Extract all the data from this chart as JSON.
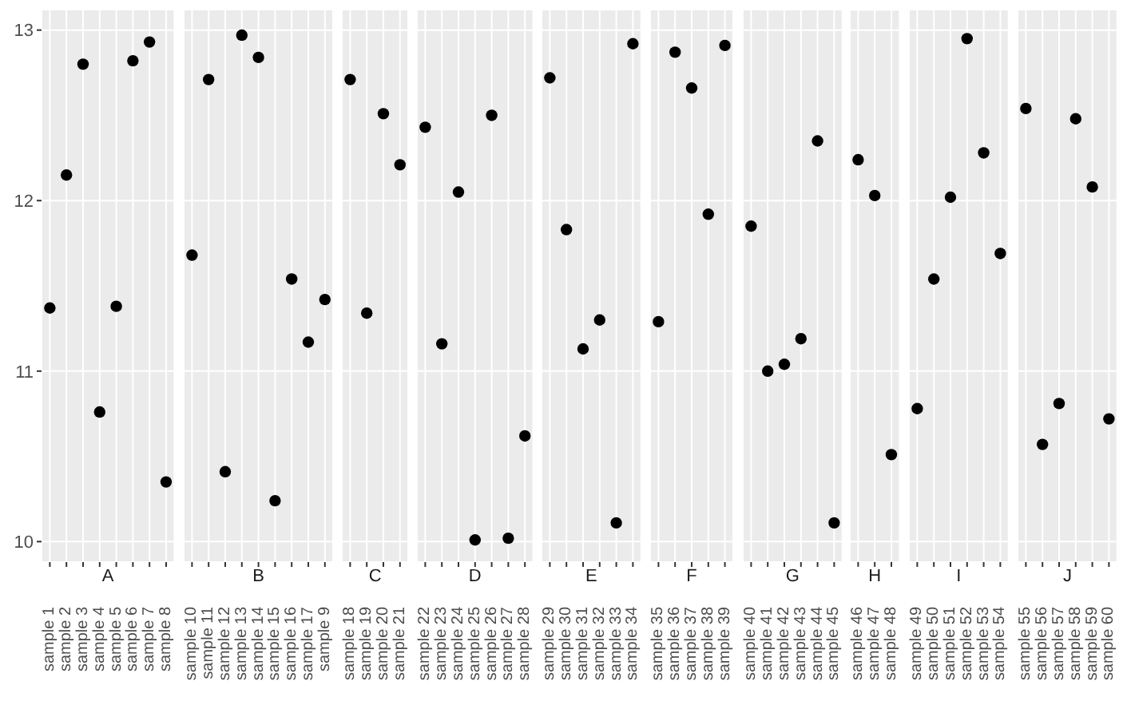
{
  "chart_data": [
    {
      "type": "scatter",
      "xlabel": "A",
      "categories": [
        "sample 1",
        "sample 2",
        "sample 3",
        "sample 4",
        "sample 5",
        "sample 6",
        "sample 7",
        "sample 8"
      ],
      "values": [
        11.37,
        12.15,
        12.8,
        10.76,
        11.38,
        12.82,
        12.93,
        10.35
      ],
      "color": "#000000",
      "marker": "circle",
      "ylim": [
        9.88,
        13.12
      ],
      "yticks": [
        10,
        11,
        12,
        13
      ],
      "grid": true
    },
    {
      "type": "scatter",
      "xlabel": "B",
      "categories": [
        "sample 10",
        "sample 11",
        "sample 12",
        "sample 13",
        "sample 14",
        "sample 15",
        "sample 16",
        "sample 17",
        "sample 9"
      ],
      "values": [
        11.68,
        12.71,
        10.41,
        12.97,
        12.84,
        10.24,
        11.54,
        11.17,
        11.42
      ],
      "color": "#000000",
      "marker": "circle",
      "ylim": [
        9.88,
        13.12
      ],
      "yticks": [
        10,
        11,
        12,
        13
      ],
      "grid": true,
      "tick_labels": "x"
    },
    {
      "type": "scatter",
      "xlabel": "C",
      "categories": [
        "sample 18",
        "sample 19",
        "sample 20",
        "sample 21"
      ],
      "values": [
        12.71,
        11.34,
        12.51,
        12.21
      ],
      "color": "#000000",
      "marker": "circle",
      "ylim": [
        9.88,
        13.12
      ],
      "yticks": [
        10,
        11,
        12,
        13
      ],
      "grid": true,
      "tick_labels": "x"
    },
    {
      "type": "scatter",
      "xlabel": "D",
      "categories": [
        "sample 22",
        "sample 23",
        "sample 24",
        "sample 25",
        "sample 26",
        "sample 27",
        "sample 28"
      ],
      "values": [
        12.43,
        11.16,
        12.05,
        10.01,
        12.5,
        10.02,
        10.62
      ],
      "color": "#000000",
      "marker": "circle",
      "ylim": [
        9.88,
        13.12
      ],
      "yticks": [
        10,
        11,
        12,
        13
      ],
      "grid": true,
      "tick_labels": "x"
    },
    {
      "type": "scatter",
      "xlabel": "E",
      "categories": [
        "sample 29",
        "sample 30",
        "sample 31",
        "sample 32",
        "sample 33",
        "sample 34"
      ],
      "values": [
        12.72,
        11.83,
        11.13,
        11.3,
        10.11,
        12.92
      ],
      "color": "#000000",
      "marker": "circle",
      "ylim": [
        9.88,
        13.12
      ],
      "yticks": [
        10,
        11,
        12,
        13
      ],
      "grid": true,
      "tick_labels": "x"
    },
    {
      "type": "scatter",
      "xlabel": "F",
      "categories": [
        "sample 35",
        "sample 36",
        "sample 37",
        "sample 38",
        "sample 39"
      ],
      "values": [
        11.29,
        12.87,
        12.66,
        11.92,
        12.91
      ],
      "color": "#000000",
      "marker": "circle",
      "ylim": [
        9.88,
        13.12
      ],
      "yticks": [
        10,
        11,
        12,
        13
      ],
      "grid": true,
      "tick_labels": "x"
    },
    {
      "type": "scatter",
      "xlabel": "G",
      "categories": [
        "sample 40",
        "sample 41",
        "sample 42",
        "sample 43",
        "sample 44",
        "sample 45"
      ],
      "values": [
        11.85,
        11.0,
        11.04,
        11.19,
        12.35,
        10.11
      ],
      "color": "#000000",
      "marker": "circle",
      "ylim": [
        9.88,
        13.12
      ],
      "yticks": [
        10,
        11,
        12,
        13
      ],
      "grid": true,
      "tick_labels": "x"
    },
    {
      "type": "scatter",
      "xlabel": "H",
      "categories": [
        "sample 46",
        "sample 47",
        "sample 48"
      ],
      "values": [
        12.24,
        12.03,
        10.51
      ],
      "color": "#000000",
      "marker": "circle",
      "ylim": [
        9.88,
        13.12
      ],
      "yticks": [
        10,
        11,
        12,
        13
      ],
      "grid": true,
      "tick_labels": "x"
    },
    {
      "type": "scatter",
      "xlabel": "I",
      "categories": [
        "sample 49",
        "sample 50",
        "sample 51",
        "sample 52",
        "sample 53",
        "sample 54"
      ],
      "values": [
        10.78,
        11.54,
        12.02,
        12.95,
        12.28,
        11.69
      ],
      "color": "#000000",
      "marker": "circle",
      "ylim": [
        9.88,
        13.12
      ],
      "yticks": [
        10,
        11,
        12,
        13
      ],
      "grid": true,
      "tick_labels": "x"
    },
    {
      "type": "scatter",
      "xlabel": "J",
      "categories": [
        "sample 55",
        "sample 56",
        "sample 57",
        "sample 58",
        "sample 59",
        "sample 60"
      ],
      "values": [
        12.54,
        10.57,
        10.81,
        12.48,
        12.08,
        10.72
      ],
      "color": "#000000",
      "marker": "circle",
      "ylim": [
        9.88,
        13.12
      ],
      "yticks": [
        10,
        11,
        12,
        13
      ],
      "grid": true,
      "tick_labels": "x"
    }
  ]
}
